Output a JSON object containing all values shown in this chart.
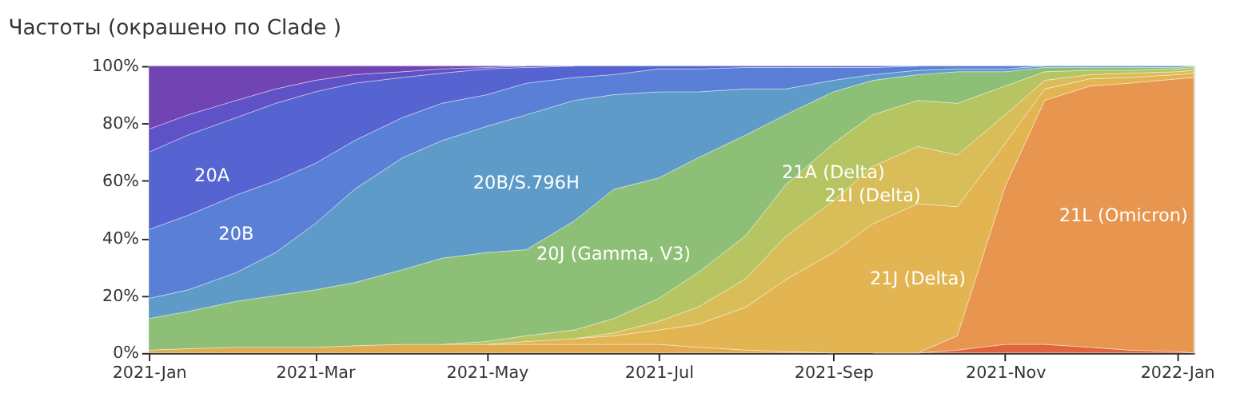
{
  "chart_data": {
    "type": "area",
    "stacked": true,
    "title": "Частоты (окрашено по Clade )",
    "x": [
      "2021-01-01",
      "2021-01-15",
      "2021-02-01",
      "2021-02-15",
      "2021-03-01",
      "2021-03-15",
      "2021-04-01",
      "2021-04-15",
      "2021-05-01",
      "2021-05-15",
      "2021-06-01",
      "2021-06-15",
      "2021-07-01",
      "2021-07-15",
      "2021-08-01",
      "2021-08-15",
      "2021-09-01",
      "2021-09-15",
      "2021-10-01",
      "2021-10-15",
      "2021-11-01",
      "2021-11-15",
      "2021-12-01",
      "2021-12-15",
      "2022-01-01",
      "2022-01-07"
    ],
    "xlim": [
      "2021-01-01",
      "2022-01-07"
    ],
    "xticks": [
      {
        "value": "2021-01-01",
        "label": "2021-Jan"
      },
      {
        "value": "2021-03-01",
        "label": "2021-Mar"
      },
      {
        "value": "2021-05-01",
        "label": "2021-May"
      },
      {
        "value": "2021-07-01",
        "label": "2021-Jul"
      },
      {
        "value": "2021-09-01",
        "label": "2021-Sep"
      },
      {
        "value": "2021-11-01",
        "label": "2021-Nov"
      },
      {
        "value": "2022-01-01",
        "label": "2022-Jan"
      }
    ],
    "ylim": [
      0,
      100
    ],
    "yticks": [
      {
        "value": 0,
        "label": "0%"
      },
      {
        "value": 20,
        "label": "20%"
      },
      {
        "value": 40,
        "label": "40%"
      },
      {
        "value": 60,
        "label": "60%"
      },
      {
        "value": 80,
        "label": "80%"
      },
      {
        "value": 100,
        "label": "100%"
      }
    ],
    "series": [
      {
        "color": "#e0643c",
        "values": [
          null,
          null,
          null,
          null,
          null,
          null,
          null,
          null,
          null,
          null,
          null,
          null,
          null,
          null,
          null,
          null,
          null,
          null,
          0,
          1,
          3,
          3,
          2,
          1,
          0.5,
          0
        ]
      },
      {
        "name": "21L (Omicron)",
        "color": "#e8954f",
        "values": [
          null,
          null,
          null,
          null,
          null,
          null,
          null,
          null,
          null,
          null,
          null,
          null,
          null,
          null,
          null,
          null,
          null,
          0,
          0,
          5,
          55,
          85,
          91,
          93,
          95,
          96
        ]
      },
      {
        "color": "#e2ab4f",
        "values": [
          1,
          1.5,
          2,
          2,
          2,
          2.5,
          3,
          3,
          3,
          3,
          3,
          3,
          3,
          2,
          1,
          0.5,
          0,
          null,
          null,
          null,
          null,
          null,
          null,
          null,
          null,
          null
        ]
      },
      {
        "name": "21J (Delta)",
        "color": "#e3b552",
        "values": [
          null,
          null,
          null,
          null,
          null,
          null,
          null,
          null,
          0,
          1,
          2,
          3,
          5,
          8,
          15,
          25,
          35,
          45,
          52,
          45,
          15,
          4,
          2.5,
          2,
          1.5,
          1.5
        ]
      },
      {
        "name": "21I (Delta)",
        "color": "#d9bd58",
        "values": [
          null,
          null,
          null,
          null,
          null,
          null,
          null,
          null,
          null,
          null,
          0,
          1,
          3,
          6,
          10,
          15,
          18,
          20,
          20,
          18,
          10,
          3,
          1.5,
          1.5,
          1,
          1
        ]
      },
      {
        "name": "21A (Delta)",
        "color": "#b6c462",
        "values": [
          null,
          null,
          null,
          null,
          null,
          null,
          null,
          0,
          1,
          2,
          3,
          5,
          8,
          12,
          15,
          18,
          20,
          18,
          16,
          18,
          10,
          3,
          1.5,
          1,
          1,
          1
        ]
      },
      {
        "name": "20J (Gamma, V3)",
        "color": "#8ebf76",
        "values": [
          11,
          13,
          16,
          18,
          20,
          22,
          26,
          30,
          31,
          30,
          38,
          45,
          42,
          40,
          35,
          24.5,
          18,
          12,
          9,
          11,
          5,
          1.5,
          1,
          1,
          0.5,
          0.5
        ]
      },
      {
        "name": "20B/S.796H",
        "color": "#5e9bc9",
        "values": [
          7,
          7.5,
          10,
          15,
          23,
          32.5,
          39,
          41,
          44,
          47,
          42,
          33,
          30,
          23,
          16,
          9,
          4,
          2,
          1.5,
          1,
          1,
          0.5,
          0.5,
          0.5,
          0.5,
          0
        ]
      },
      {
        "name": "20B",
        "color": "#5a7fd6",
        "values": [
          24,
          26,
          27,
          25,
          21,
          17,
          14,
          13,
          11,
          11,
          8,
          7,
          8,
          8,
          7.5,
          7.5,
          4.5,
          2.5,
          1.5,
          1,
          1,
          0,
          null,
          null,
          null,
          null
        ]
      },
      {
        "name": "20A",
        "color": "#5664d2",
        "values": [
          27,
          28,
          27,
          27,
          25,
          20,
          14,
          10.5,
          9,
          5.5,
          4,
          3,
          1,
          1,
          0.5,
          0.5,
          0.5,
          0.5,
          0,
          null,
          null,
          null,
          null,
          null,
          null,
          null
        ]
      },
      {
        "color": "#5f52c6",
        "values": [
          8,
          7,
          6,
          5,
          4,
          3,
          2,
          1.5,
          0.5,
          0.5,
          0,
          null,
          null,
          null,
          null,
          null,
          null,
          null,
          null,
          null,
          null,
          null,
          null,
          null,
          null,
          null
        ]
      },
      {
        "color": "#7144b3",
        "values": [
          22,
          17,
          12,
          8,
          5,
          3,
          2,
          1,
          0.5,
          0,
          null,
          null,
          null,
          null,
          null,
          null,
          null,
          null,
          null,
          null,
          null,
          null,
          null,
          null,
          null,
          null
        ]
      }
    ]
  }
}
